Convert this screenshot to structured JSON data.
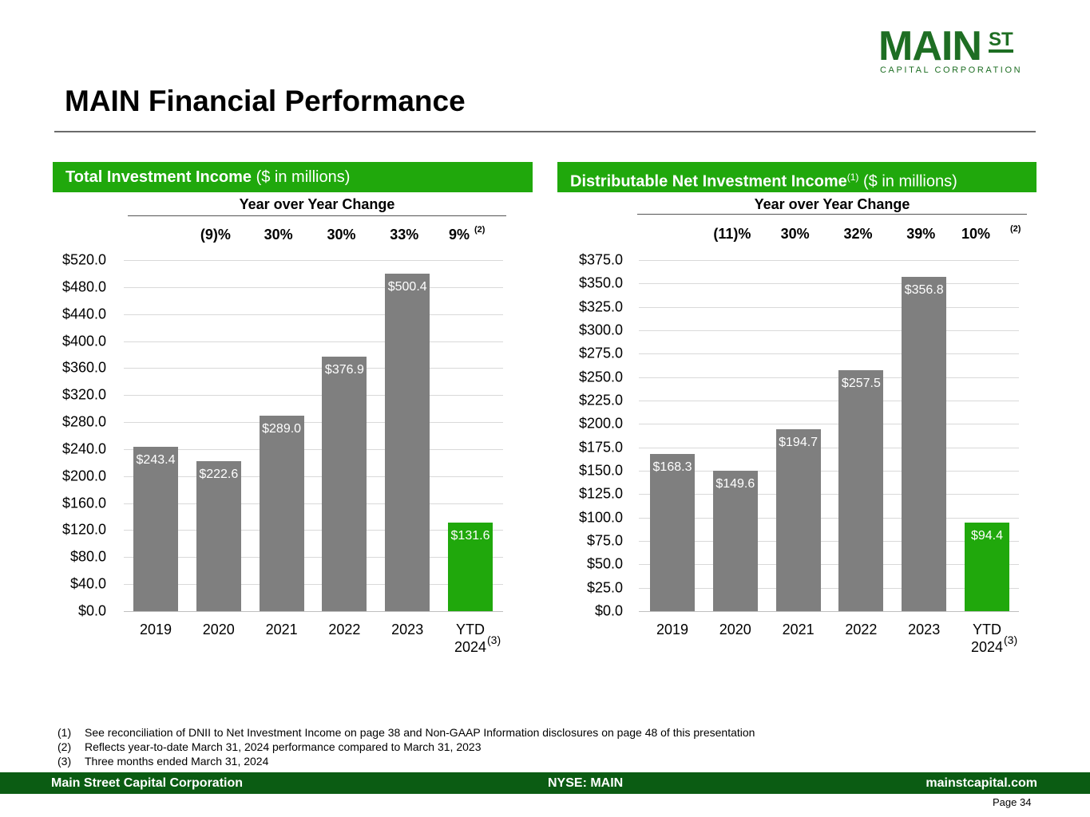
{
  "logo": {
    "main": "MAIN",
    "st": "ST",
    "sub": "CAPITAL CORPORATION"
  },
  "title": "MAIN Financial Performance",
  "panels": [
    {
      "header_bold": "Total Investment Income",
      "header_sup": "",
      "header_rest": " ($ in millions)",
      "yoy_title": "Year over Year Change",
      "yoy": [
        "(9)%",
        "30%",
        "30%",
        "33%",
        "9%"
      ],
      "yoy_last_note": "(2)",
      "x_note": "(3)"
    },
    {
      "header_bold": "Distributable Net Investment Income",
      "header_sup": "(1)",
      "header_rest": " ($ in millions)",
      "yoy_title": "Year over Year Change",
      "yoy": [
        "(11)%",
        "30%",
        "32%",
        "39%",
        "10%"
      ],
      "yoy_last_note": "(2)",
      "x_note": "(3)"
    }
  ],
  "chart_data": [
    {
      "type": "bar",
      "title": "Total Investment Income ($ in millions)",
      "categories": [
        "2019",
        "2020",
        "2021",
        "2022",
        "2023",
        "YTD 2024"
      ],
      "category_lines": [
        [
          "2019"
        ],
        [
          "2020"
        ],
        [
          "2021"
        ],
        [
          "2022"
        ],
        [
          "2023"
        ],
        [
          "YTD",
          "2024"
        ]
      ],
      "values": [
        243.4,
        222.6,
        289.0,
        376.9,
        500.4,
        131.6
      ],
      "labels": [
        "$243.4",
        "$222.6",
        "$289.0",
        "$376.9",
        "$500.4",
        "$131.6"
      ],
      "ylim": [
        0,
        520
      ],
      "yticks": [
        "$0.0",
        "$40.0",
        "$80.0",
        "$120.0",
        "$160.0",
        "$200.0",
        "$240.0",
        "$280.0",
        "$320.0",
        "$360.0",
        "$400.0",
        "$440.0",
        "$480.0",
        "$520.0"
      ],
      "ytick_values": [
        0,
        40,
        80,
        120,
        160,
        200,
        240,
        280,
        320,
        360,
        400,
        440,
        480,
        520
      ],
      "highlight_index": 5,
      "grid": true,
      "bar_color": "#7f7f7f",
      "highlight_color": "#20a80c"
    },
    {
      "type": "bar",
      "title": "Distributable Net Investment Income ($ in millions)",
      "categories": [
        "2019",
        "2020",
        "2021",
        "2022",
        "2023",
        "YTD 2024"
      ],
      "category_lines": [
        [
          "2019"
        ],
        [
          "2020"
        ],
        [
          "2021"
        ],
        [
          "2022"
        ],
        [
          "2023"
        ],
        [
          "YTD",
          "2024"
        ]
      ],
      "values": [
        168.3,
        149.6,
        194.7,
        257.5,
        356.8,
        94.4
      ],
      "labels": [
        "$168.3",
        "$149.6",
        "$194.7",
        "$257.5",
        "$356.8",
        "$94.4"
      ],
      "ylim": [
        0,
        375
      ],
      "yticks": [
        "$0.0",
        "$25.0",
        "$50.0",
        "$75.0",
        "$100.0",
        "$125.0",
        "$150.0",
        "$175.0",
        "$200.0",
        "$225.0",
        "$250.0",
        "$275.0",
        "$300.0",
        "$325.0",
        "$350.0",
        "$375.0"
      ],
      "ytick_values": [
        0,
        25,
        50,
        75,
        100,
        125,
        150,
        175,
        200,
        225,
        250,
        275,
        300,
        325,
        350,
        375
      ],
      "highlight_index": 5,
      "grid": true,
      "bar_color": "#7f7f7f",
      "highlight_color": "#20a80c"
    }
  ],
  "footnotes": [
    {
      "num": "(1)",
      "text": "See reconciliation of DNII to Net Investment Income on page 38 and Non-GAAP Information disclosures on page 48 of this presentation"
    },
    {
      "num": "(2)",
      "text": "Reflects year-to-date March 31, 2024 performance compared to March 31, 2023"
    },
    {
      "num": "(3)",
      "text": "Three months ended March 31, 2024"
    }
  ],
  "footer": {
    "left": "Main Street Capital Corporation",
    "center": "NYSE: MAIN",
    "right": "mainstcapital.com"
  },
  "page": "Page  34"
}
